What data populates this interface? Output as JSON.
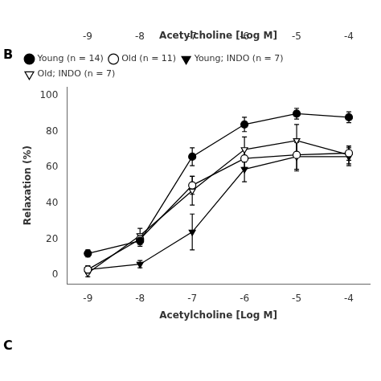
{
  "chart_data": [
    {
      "type": "axis",
      "xlabel": "Acetylcholine [Log M]",
      "xlim": [
        -9.4,
        -3.6
      ],
      "xticks": [
        -9,
        -8,
        -7,
        -6,
        -5,
        -4
      ]
    },
    {
      "type": "line",
      "xlabel": "Acetylcholine [Log M]",
      "ylabel": "Relaxation (%)",
      "x": [
        -9,
        -8,
        -7,
        -6,
        -5,
        -4
      ],
      "series": [
        {
          "name": "Young (n = 14)",
          "color": "black",
          "marker": "circle",
          "line_style": "solid",
          "values": [
            12,
            19,
            66,
            84,
            90,
            88
          ],
          "yerr": [
            2,
            3,
            5,
            4,
            3,
            3
          ]
        },
        {
          "name": "Old (n = 11)",
          "color": "black",
          "marker": "circle_open",
          "line_style": "solid",
          "values": [
            3,
            20,
            50,
            65,
            67,
            68
          ],
          "yerr": [
            2,
            3,
            5,
            5,
            8,
            4
          ]
        },
        {
          "name": "Young; INDO (n = 7)",
          "color": "black",
          "marker": "triangle_down",
          "line_style": "solid",
          "values": [
            3,
            6,
            24,
            59,
            66,
            66
          ],
          "yerr": [
            2,
            2,
            10,
            7,
            8,
            5
          ]
        },
        {
          "name": "Old; INDO (n = 7)",
          "color": "black",
          "marker": "triangle_down_open",
          "line_style": "solid",
          "values": [
            1,
            22,
            47,
            70,
            75,
            67
          ],
          "yerr": [
            2,
            4,
            8,
            7,
            9,
            5
          ]
        }
      ],
      "xlim": [
        -9.4,
        -3.6
      ],
      "xticks": [
        -9,
        -8,
        -7,
        -6,
        -5,
        -4
      ],
      "ylim": [
        -5,
        105
      ],
      "yticks": [
        0,
        20,
        40,
        60,
        80,
        100
      ],
      "grid": false,
      "legend": "upper left",
      "annotations": [
        "B",
        "C"
      ]
    }
  ]
}
